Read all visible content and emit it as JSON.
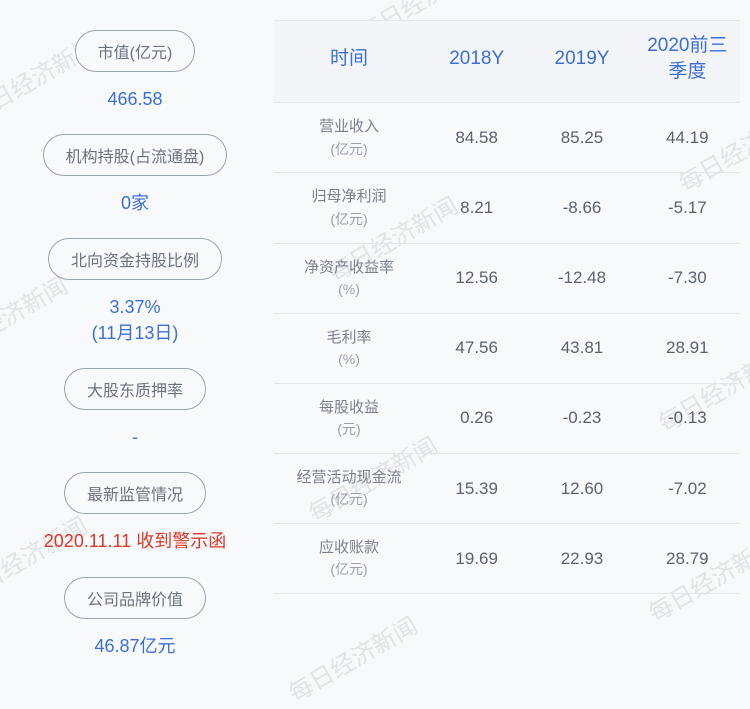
{
  "watermark_text": "每日经济新闻",
  "left": {
    "items": [
      {
        "label": "市值(亿元)",
        "value": "466.58",
        "color": "#3b6fd6"
      },
      {
        "label": "机构持股(占流通盘)",
        "value": "0家",
        "color": "#3b6fd6"
      },
      {
        "label": "北向资金持股比例",
        "value": "3.37%\n(11月13日)",
        "color": "#3b6fd6"
      },
      {
        "label": "大股东质押率",
        "value": "-",
        "color": "#3b6fd6"
      },
      {
        "label": "最新监管情况",
        "value": "2020.11.11 收到警示函",
        "color": "#d63a2a"
      },
      {
        "label": "公司品牌价值",
        "value": "46.87亿元",
        "color": "#3b6fd6"
      }
    ]
  },
  "table": {
    "headers": [
      "时间",
      "2018Y",
      "2019Y",
      "2020前三季度"
    ],
    "rows": [
      {
        "metric": "营业收入",
        "unit": "(亿元)",
        "cells": [
          "84.58",
          "85.25",
          "44.19"
        ]
      },
      {
        "metric": "归母净利润",
        "unit": "(亿元)",
        "cells": [
          "8.21",
          "-8.66",
          "-5.17"
        ]
      },
      {
        "metric": "净资产收益率",
        "unit": "(%)",
        "cells": [
          "12.56",
          "-12.48",
          "-7.30"
        ]
      },
      {
        "metric": "毛利率",
        "unit": "(%)",
        "cells": [
          "47.56",
          "43.81",
          "28.91"
        ]
      },
      {
        "metric": "每股收益",
        "unit": "(元)",
        "cells": [
          "0.26",
          "-0.23",
          "-0.13"
        ]
      },
      {
        "metric": "经营活动现金流",
        "unit": "(亿元)",
        "cells": [
          "15.39",
          "12.60",
          "-7.02"
        ]
      },
      {
        "metric": "应收账款",
        "unit": "(亿元)",
        "cells": [
          "19.69",
          "22.93",
          "28.79"
        ]
      }
    ]
  },
  "styling": {
    "background_color": "#f8f9fb",
    "header_bg": "#f3f5f9",
    "header_text_color": "#3b6fd6",
    "pill_border_color": "#9aa4b2",
    "pill_text_color": "#6b7280",
    "cell_text_color": "#5b6270",
    "border_color": "#e3e6ec",
    "value_blue": "#3b6fd6",
    "value_red": "#d63a2a",
    "watermark_color": "rgba(180,185,195,0.35)"
  }
}
